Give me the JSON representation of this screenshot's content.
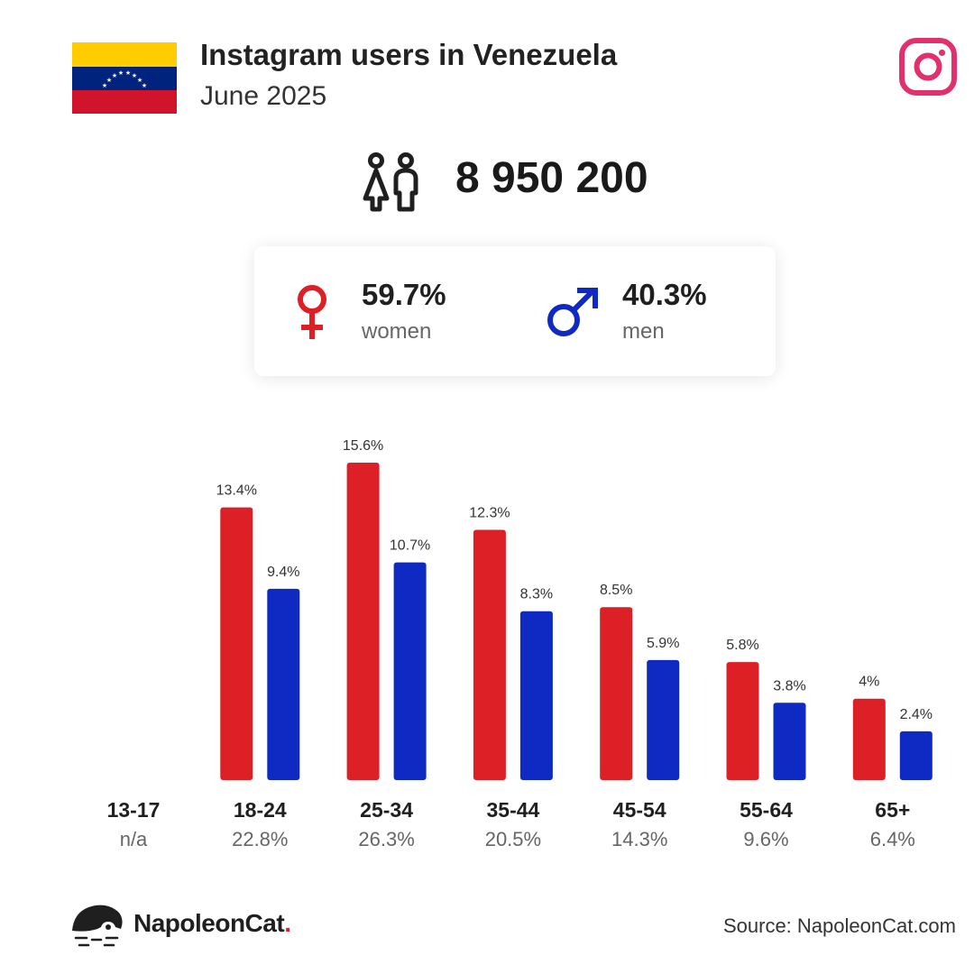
{
  "header": {
    "title": "Instagram users in Venezuela",
    "subtitle": "June 2025",
    "flag_icon": "venezuela-flag-icon",
    "logo_icon": "instagram-logo-icon"
  },
  "summary": {
    "total_users": "8 950 200",
    "icon": "users-icon"
  },
  "gender": {
    "women": {
      "percent": "59.7%",
      "label": "women",
      "icon": "female-symbol-icon"
    },
    "men": {
      "percent": "40.3%",
      "label": "men",
      "icon": "male-symbol-icon"
    }
  },
  "colors": {
    "women": "#dd1f26",
    "men": "#0f2ac2",
    "instagram": "#e1306c",
    "flag_yellow": "#ffcc00",
    "flag_blue": "#00247d",
    "flag_red": "#cf142b"
  },
  "chart_data": {
    "type": "bar",
    "categories": [
      "13-17",
      "18-24",
      "25-34",
      "35-44",
      "45-54",
      "55-64",
      "65+"
    ],
    "category_totals": [
      "n/a",
      "22.8%",
      "26.3%",
      "20.5%",
      "14.3%",
      "9.6%",
      "6.4%"
    ],
    "series": [
      {
        "name": "women",
        "values": [
          null,
          13.4,
          15.6,
          12.3,
          8.5,
          5.8,
          4
        ],
        "labels": [
          "",
          "13.4%",
          "15.6%",
          "12.3%",
          "8.5%",
          "5.8%",
          "4%"
        ]
      },
      {
        "name": "men",
        "values": [
          null,
          9.4,
          10.7,
          8.3,
          5.9,
          3.8,
          2.4
        ],
        "labels": [
          "",
          "9.4%",
          "10.7%",
          "8.3%",
          "5.9%",
          "3.8%",
          "2.4%"
        ]
      }
    ],
    "ylim": [
      0,
      15.6
    ],
    "grid": false,
    "legend": "none"
  },
  "footer": {
    "brand_name": "NapoleonCat",
    "brand_dot": ".",
    "brand_icon": "napoleoncat-logo-icon",
    "source": "Source: NapoleonCat.com"
  }
}
